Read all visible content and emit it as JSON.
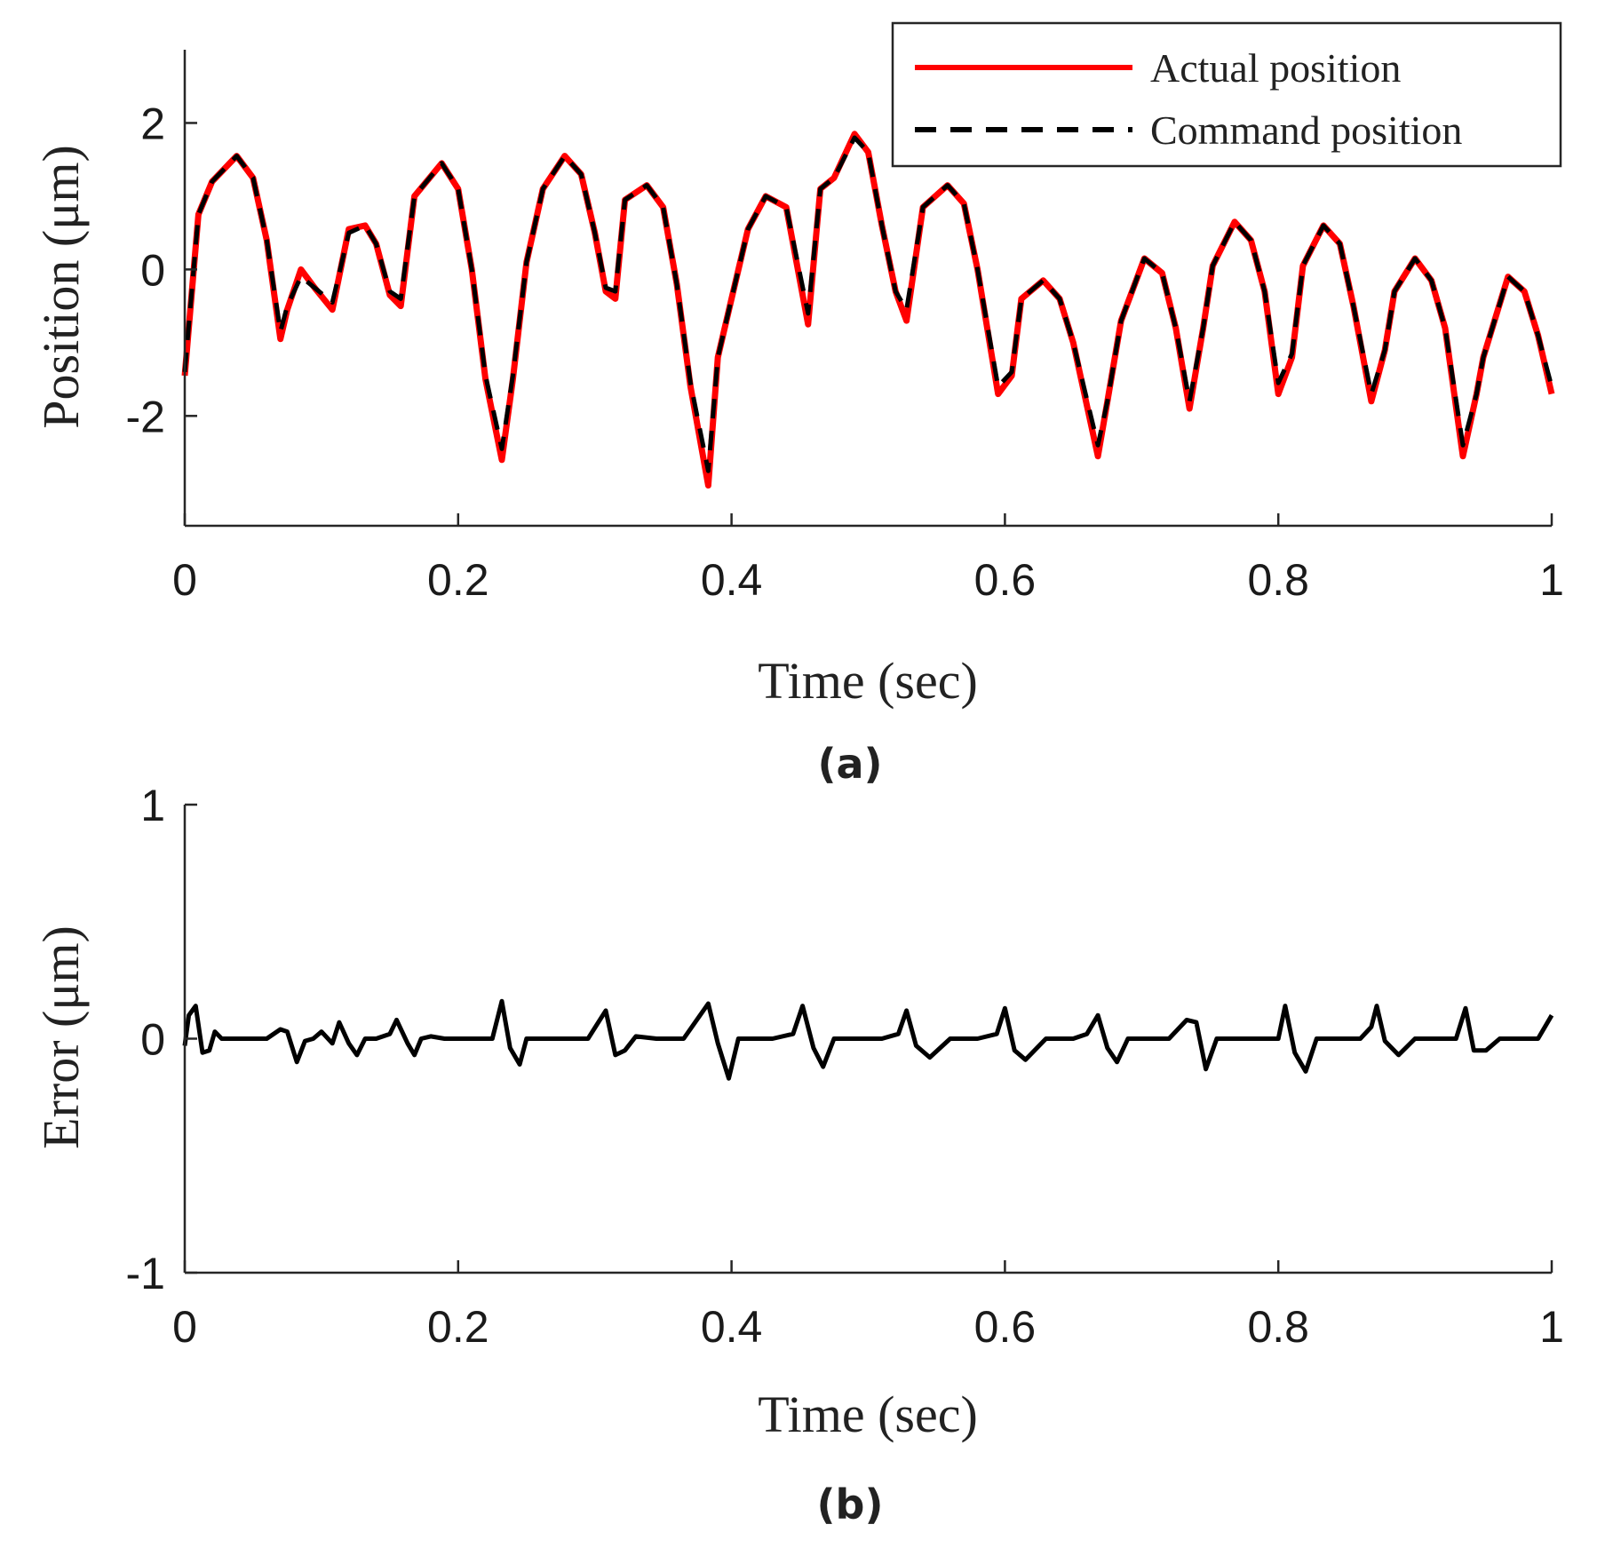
{
  "chart_data": [
    {
      "type": "line",
      "panel_label": "(a)",
      "xlabel": "Time (sec)",
      "ylabel": "Position (μm)",
      "xlim": [
        0,
        1
      ],
      "ylim": [
        -3.5,
        3
      ],
      "xticks": [
        0,
        0.2,
        0.4,
        0.6,
        0.8,
        1
      ],
      "xtick_labels": [
        "0",
        "0.2",
        "0.4",
        "0.6",
        "0.8",
        "1"
      ],
      "yticks": [
        -2,
        0,
        2
      ],
      "ytick_labels": [
        "-2",
        "0",
        "2"
      ],
      "grid": false,
      "legend_position": "top-right",
      "series": [
        {
          "name": "Actual position",
          "color": "#ff0000",
          "style": "solid",
          "x": [
            0,
            0.01,
            0.02,
            0.038,
            0.05,
            0.06,
            0.07,
            0.075,
            0.085,
            0.095,
            0.108,
            0.12,
            0.132,
            0.14,
            0.15,
            0.158,
            0.168,
            0.188,
            0.2,
            0.21,
            0.22,
            0.232,
            0.24,
            0.25,
            0.262,
            0.278,
            0.29,
            0.3,
            0.308,
            0.315,
            0.322,
            0.338,
            0.35,
            0.36,
            0.37,
            0.383,
            0.39,
            0.4,
            0.412,
            0.425,
            0.44,
            0.456,
            0.465,
            0.475,
            0.49,
            0.5,
            0.51,
            0.52,
            0.528,
            0.54,
            0.558,
            0.57,
            0.58,
            0.595,
            0.605,
            0.612,
            0.628,
            0.64,
            0.65,
            0.668,
            0.675,
            0.685,
            0.702,
            0.715,
            0.725,
            0.735,
            0.745,
            0.752,
            0.768,
            0.78,
            0.79,
            0.8,
            0.81,
            0.818,
            0.833,
            0.845,
            0.855,
            0.868,
            0.878,
            0.885,
            0.9,
            0.912,
            0.922,
            0.935,
            0.945,
            0.95,
            0.968,
            0.98,
            0.99,
            1.0
          ],
          "values": [
            -1.45,
            0.75,
            1.2,
            1.55,
            1.25,
            0.4,
            -0.95,
            -0.55,
            0.0,
            -0.25,
            -0.55,
            0.55,
            0.6,
            0.35,
            -0.35,
            -0.5,
            1.0,
            1.45,
            1.1,
            0.0,
            -1.5,
            -2.6,
            -1.5,
            0.1,
            1.1,
            1.55,
            1.3,
            0.5,
            -0.3,
            -0.4,
            0.95,
            1.15,
            0.85,
            -0.2,
            -1.6,
            -2.95,
            -1.2,
            -0.4,
            0.55,
            1.0,
            0.85,
            -0.75,
            1.1,
            1.25,
            1.85,
            1.6,
            0.6,
            -0.3,
            -0.7,
            0.85,
            1.15,
            0.9,
            0.0,
            -1.7,
            -1.45,
            -0.4,
            -0.15,
            -0.4,
            -1.0,
            -2.55,
            -1.8,
            -0.7,
            0.15,
            -0.05,
            -0.8,
            -1.9,
            -0.8,
            0.05,
            0.65,
            0.4,
            -0.3,
            -1.7,
            -1.2,
            0.05,
            0.6,
            0.35,
            -0.5,
            -1.8,
            -1.1,
            -0.3,
            0.15,
            -0.15,
            -0.8,
            -2.55,
            -1.7,
            -1.2,
            -0.1,
            -0.3,
            -0.9,
            -1.7
          ]
        },
        {
          "name": "Command position",
          "color": "#000000",
          "style": "dashed",
          "x": [
            0,
            0.01,
            0.02,
            0.038,
            0.05,
            0.06,
            0.07,
            0.075,
            0.085,
            0.095,
            0.108,
            0.12,
            0.132,
            0.14,
            0.15,
            0.158,
            0.168,
            0.188,
            0.2,
            0.21,
            0.22,
            0.232,
            0.24,
            0.25,
            0.262,
            0.278,
            0.29,
            0.3,
            0.308,
            0.315,
            0.322,
            0.338,
            0.35,
            0.36,
            0.37,
            0.383,
            0.39,
            0.4,
            0.412,
            0.425,
            0.44,
            0.456,
            0.465,
            0.475,
            0.49,
            0.5,
            0.51,
            0.52,
            0.528,
            0.54,
            0.558,
            0.57,
            0.58,
            0.595,
            0.605,
            0.612,
            0.628,
            0.64,
            0.65,
            0.668,
            0.675,
            0.685,
            0.702,
            0.715,
            0.725,
            0.735,
            0.745,
            0.752,
            0.768,
            0.78,
            0.79,
            0.8,
            0.81,
            0.818,
            0.833,
            0.845,
            0.855,
            0.868,
            0.878,
            0.885,
            0.9,
            0.912,
            0.922,
            0.935,
            0.945,
            0.95,
            0.968,
            0.98,
            0.99,
            1.0
          ],
          "values": [
            -1.4,
            0.75,
            1.2,
            1.55,
            1.25,
            0.4,
            -0.85,
            -0.5,
            -0.1,
            -0.25,
            -0.45,
            0.5,
            0.6,
            0.35,
            -0.3,
            -0.4,
            1.0,
            1.45,
            1.1,
            0.0,
            -1.45,
            -2.45,
            -1.45,
            0.1,
            1.1,
            1.55,
            1.3,
            0.5,
            -0.25,
            -0.3,
            0.95,
            1.15,
            0.85,
            -0.2,
            -1.55,
            -2.75,
            -1.2,
            -0.4,
            0.55,
            1.0,
            0.85,
            -0.6,
            1.1,
            1.25,
            1.8,
            1.6,
            0.6,
            -0.3,
            -0.55,
            0.85,
            1.15,
            0.9,
            0.0,
            -1.6,
            -1.4,
            -0.4,
            -0.15,
            -0.4,
            -1.0,
            -2.4,
            -1.8,
            -0.7,
            0.15,
            -0.05,
            -0.8,
            -1.8,
            -0.8,
            0.05,
            0.65,
            0.4,
            -0.3,
            -1.55,
            -1.15,
            0.05,
            0.6,
            0.35,
            -0.5,
            -1.7,
            -1.1,
            -0.3,
            0.15,
            -0.15,
            -0.8,
            -2.4,
            -1.7,
            -1.2,
            -0.1,
            -0.3,
            -0.9,
            -1.6
          ]
        }
      ]
    },
    {
      "type": "line",
      "panel_label": "(b)",
      "xlabel": "Time (sec)",
      "ylabel": "Error (μm)",
      "xlim": [
        0,
        1
      ],
      "ylim": [
        -1,
        1
      ],
      "xticks": [
        0,
        0.2,
        0.4,
        0.6,
        0.8,
        1
      ],
      "xtick_labels": [
        "0",
        "0.2",
        "0.4",
        "0.6",
        "0.8",
        "1"
      ],
      "yticks": [
        -1,
        0,
        1
      ],
      "ytick_labels": [
        "-1",
        "0",
        "1"
      ],
      "grid": false,
      "series": [
        {
          "color": "#000000",
          "style": "solid",
          "x": [
            0,
            0.003,
            0.008,
            0.013,
            0.018,
            0.022,
            0.027,
            0.035,
            0.045,
            0.06,
            0.07,
            0.075,
            0.082,
            0.088,
            0.094,
            0.1,
            0.108,
            0.113,
            0.12,
            0.126,
            0.132,
            0.14,
            0.15,
            0.155,
            0.163,
            0.168,
            0.173,
            0.18,
            0.19,
            0.21,
            0.225,
            0.232,
            0.238,
            0.245,
            0.25,
            0.26,
            0.275,
            0.295,
            0.308,
            0.315,
            0.322,
            0.33,
            0.345,
            0.365,
            0.383,
            0.39,
            0.398,
            0.405,
            0.415,
            0.43,
            0.445,
            0.452,
            0.46,
            0.467,
            0.475,
            0.49,
            0.51,
            0.522,
            0.528,
            0.535,
            0.545,
            0.56,
            0.58,
            0.594,
            0.6,
            0.607,
            0.615,
            0.63,
            0.65,
            0.66,
            0.668,
            0.675,
            0.682,
            0.69,
            0.7,
            0.72,
            0.733,
            0.74,
            0.747,
            0.755,
            0.765,
            0.785,
            0.8,
            0.805,
            0.812,
            0.82,
            0.828,
            0.84,
            0.86,
            0.868,
            0.872,
            0.878,
            0.888,
            0.9,
            0.92,
            0.93,
            0.937,
            0.943,
            0.952,
            0.962,
            0.975,
            0.99,
            1.0
          ],
          "values": [
            -0.03,
            0.1,
            0.14,
            -0.06,
            -0.05,
            0.03,
            0.0,
            0.0,
            0.0,
            0.0,
            0.04,
            0.03,
            -0.1,
            -0.01,
            0.0,
            0.03,
            -0.02,
            0.07,
            -0.02,
            -0.07,
            0.0,
            0.0,
            0.02,
            0.08,
            -0.02,
            -0.07,
            0.0,
            0.01,
            0.0,
            0.0,
            0.0,
            0.16,
            -0.04,
            -0.11,
            0.0,
            0.0,
            0.0,
            0.0,
            0.12,
            -0.07,
            -0.05,
            0.01,
            0.0,
            0.0,
            0.15,
            -0.02,
            -0.17,
            0.0,
            0.0,
            0.0,
            0.02,
            0.14,
            -0.04,
            -0.12,
            0.0,
            0.0,
            0.0,
            0.02,
            0.12,
            -0.03,
            -0.08,
            0.0,
            0.0,
            0.02,
            0.13,
            -0.05,
            -0.09,
            0.0,
            0.0,
            0.02,
            0.1,
            -0.04,
            -0.1,
            0.0,
            0.0,
            0.0,
            0.08,
            0.07,
            -0.13,
            0.0,
            0.0,
            0.0,
            0.0,
            0.14,
            -0.06,
            -0.14,
            0.0,
            0.0,
            0.0,
            0.05,
            0.14,
            -0.01,
            -0.07,
            0.0,
            0.0,
            0.0,
            0.13,
            -0.05,
            -0.05,
            0.0,
            0.0,
            0.0,
            0.1
          ]
        }
      ]
    }
  ]
}
